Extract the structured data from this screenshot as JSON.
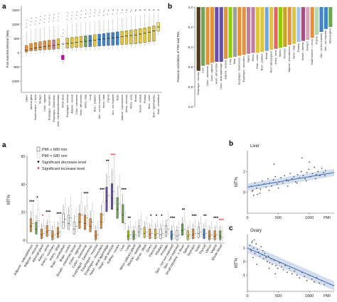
{
  "panel_labels": {
    "top_left": "a",
    "top_right": "b",
    "bottom_left": "a",
    "liver": "b",
    "ovary": "c"
  },
  "colors": {
    "box_default": "#e2c43a",
    "green": "#6aa84f",
    "orange": "#e69138",
    "purple": "#674ea7",
    "dark": "#333333",
    "fit_blue": "#3d6fb6",
    "ci_band": "#c9d6ea",
    "sig_black": "#000000",
    "sig_red": "#e03030"
  },
  "chart_data": [
    {
      "id": "pmi-distribution",
      "type": "box",
      "ylabel": "Post-mortem interval (Min)",
      "ylim": [
        -1400,
        1650
      ],
      "yticks": [
        -1000,
        -500,
        0,
        500,
        1000,
        1500
      ],
      "categories": [
        "Spleen",
        "Adrenal gland",
        "Small intestine - t. ileum",
        "Stomach",
        "Colon - sigmoid",
        "Esophagus - muscularis",
        "Esophagus - Gastroesop.",
        "Cells - transformed fibroblasts",
        "Whole blood",
        "Esophagus - mucosa",
        "Adipose - visceral",
        "Colon - transverse",
        "Heart - left ventricle",
        "Artery - tibial",
        "Lung",
        "Brain - putamen",
        "Skin - not sun exposed",
        "Nerve - tibial",
        "Thyroid",
        "Skin - sun exposed",
        "Testis",
        "Adipose - subcutaneous",
        "Artery - coronary",
        "Artery - aorta",
        "Breast",
        "Muscle - skeletal",
        "Pituitary",
        "Brain - cortex",
        "Brain - hypothalamus",
        "Brain - cerebellum"
      ],
      "medians": [
        80,
        130,
        160,
        190,
        210,
        230,
        250,
        280,
        300,
        320,
        340,
        360,
        380,
        400,
        420,
        440,
        460,
        480,
        500,
        520,
        540,
        560,
        580,
        600,
        620,
        650,
        680,
        720,
        760,
        900
      ],
      "q1": [
        20,
        60,
        70,
        90,
        100,
        110,
        120,
        140,
        -250,
        160,
        170,
        180,
        190,
        200,
        210,
        220,
        230,
        240,
        250,
        260,
        270,
        280,
        290,
        300,
        310,
        330,
        350,
        380,
        400,
        750
      ],
      "q3": [
        250,
        320,
        350,
        380,
        410,
        430,
        450,
        480,
        -90,
        510,
        530,
        550,
        570,
        590,
        610,
        630,
        650,
        670,
        690,
        710,
        730,
        750,
        770,
        790,
        810,
        840,
        870,
        900,
        940,
        1060
      ],
      "fill": [
        "#e69138",
        "#e69138",
        "#e69138",
        "#e69138",
        "#e69138",
        "#e69138",
        "#c27ba0",
        "#e2c43a",
        "#cc00cc",
        "#e2c43a",
        "#e2c43a",
        "#e2c43a",
        "#e2c43a",
        "#6aa84f",
        "#3d85c6",
        "#e2c43a",
        "#3d85c6",
        "#3d85c6",
        "#3d85c6",
        "#3d85c6",
        "#3d85c6",
        "#e2c43a",
        "#e2c43a",
        "#e2c43a",
        "#e2c43a",
        "#e2c43a",
        "#e2c43a",
        "#e2c43a",
        "#e2c43a",
        "#f1e15a"
      ]
    },
    {
      "id": "pmi-correlation",
      "type": "bar",
      "ylabel": "Pearson correlation of PMI and RIN",
      "ylim": [
        -1.0,
        0.0
      ],
      "yticks": [
        -1.0,
        -0.8,
        -0.6,
        -0.4,
        -0.2,
        0.0
      ],
      "categories": [
        "Esophagus - mucosa",
        "Liver",
        "Colon - transverse",
        "Colon - sigmoid",
        "Heart - left ventricle",
        "Heart - atrial appendage",
        "Adipose - visceral",
        "Lung",
        "Testis",
        "Esophagus - Gastroesop.",
        "Esophagus - muscularis",
        "Vagina",
        "Uterus",
        "Brain - cortex",
        "Brain - putamen",
        "Breast",
        "Minor salivary gland",
        "Artery - aorta",
        "Spleen",
        "Pancreas",
        "Adipose - subcutaneous",
        "Nerve - tibial",
        "Pituitary",
        "Muscle - skeletal",
        "Stomach",
        "Small intestine - t. ileum",
        "Thyroid",
        "Skin - not sun exposed",
        "Skin - sun exposed",
        "Adrenal gland"
      ],
      "values": [
        -0.64,
        -0.59,
        -0.58,
        -0.56,
        -0.55,
        -0.55,
        -0.52,
        -0.51,
        -0.5,
        -0.49,
        -0.48,
        -0.47,
        -0.46,
        -0.46,
        -0.45,
        -0.44,
        -0.43,
        -0.42,
        -0.41,
        -0.4,
        -0.38,
        -0.37,
        -0.35,
        -0.34,
        -0.33,
        -0.31,
        -0.28,
        -0.25,
        -0.22,
        -0.2
      ],
      "colors": [
        "#4a3a1a",
        "#6aa84f",
        "#e69138",
        "#e69138",
        "#674ea7",
        "#674ea7",
        "#e69138",
        "#8fce00",
        "#9e9e9e",
        "#e69138",
        "#e69138",
        "#c27ba0",
        "#c27ba0",
        "#e2c43a",
        "#e2c43a",
        "#6fa8dc",
        "#e2c43a",
        "#e06666",
        "#8fce00",
        "#c9a227",
        "#e69138",
        "#e2c43a",
        "#9fc5e8",
        "#a64d79",
        "#d5a6bd",
        "#e69138",
        "#b6d7a8",
        "#3d85c6",
        "#3d85c6",
        "#6aa84f"
      ]
    },
    {
      "id": "mt-percentage",
      "type": "box",
      "ylabel": "MT%",
      "ylim": [
        -2,
        60
      ],
      "yticks": [
        0,
        20,
        40,
        60
      ],
      "legend": [
        "PMI ≥ 680 min",
        "PMI < 680 min",
        "Significant decrease level",
        "Significant increase level"
      ],
      "categories": [
        "Adipose - subcutaneous",
        "Adipose - visceral",
        "Adrenal gland",
        "Artery - aorta",
        "Artery - coronary",
        "Artery - tibial",
        "Brain - cerebellum",
        "Brain - cortex",
        "Breast - mammary tissue",
        "Colon - sigmoid",
        "Colon - transverse",
        "Esophagus - Gastroesop.",
        "Esophagus - mucosa",
        "Esophagus - muscularis",
        "Heart - atrial appendage",
        "Heart - left ventricle",
        "Kidney - cortex",
        "Liver",
        "Lung",
        "Minor salivary gland",
        "Muscle - skeletal",
        "Nerve - tibial",
        "Ovary",
        "Pancreas",
        "Pituitary",
        "Prostate",
        "Skin - not sun exposed",
        "Skin - sun exposed",
        "Small intestine - t. ileum",
        "Spleen",
        "Stomach",
        "Testis",
        "Thyroid",
        "Uterus",
        "Vagina",
        "Whole blood"
      ],
      "long_median": [
        10,
        8,
        4,
        6,
        3,
        5,
        13,
        12,
        8,
        13,
        12,
        10,
        3,
        13,
        28,
        30,
        22,
        18,
        3,
        3,
        6,
        5,
        4,
        4,
        4,
        6,
        3,
        3,
        7,
        3,
        4,
        5,
        4,
        3,
        3,
        3
      ],
      "short_median": [
        12,
        14,
        5,
        7,
        4,
        6,
        15,
        16,
        10,
        18,
        16,
        13,
        4,
        18,
        32,
        35,
        26,
        12,
        4,
        4,
        8,
        6,
        5,
        5,
        5,
        8,
        4,
        4,
        8,
        4,
        5,
        6,
        5,
        4,
        4,
        2
      ],
      "long_fill": [
        "#e69138",
        "#6aa84f",
        "#e69138",
        "#e69138",
        "#e69138",
        "#e69138",
        "#ffffff",
        "#ffffff",
        "#ffffff",
        "#e69138",
        "#e69138",
        "#e69138",
        "#e69138",
        "#e69138",
        "#674ea7",
        "#674ea7",
        "#6aa84f",
        "#6aa84f",
        "#8fce00",
        "#6aa84f",
        "#ffffff",
        "#e2c43a",
        "#e69138",
        "#e2c43a",
        "#ffffff",
        "#ffffff",
        "#3d85c6",
        "#ffffff",
        "#6aa84f",
        "#e2c43a",
        "#e69138",
        "#ffffff",
        "#3d85c6",
        "#e69138",
        "#e69138",
        "#6aa84f"
      ],
      "significance": [
        "***",
        "*",
        "*",
        "***",
        "",
        "***",
        "",
        "",
        "",
        "",
        "***",
        "",
        "",
        "***",
        "**",
        "***",
        "",
        "***",
        "**",
        "",
        "",
        "",
        "*",
        "*",
        "*",
        "",
        "***",
        "",
        "**",
        "",
        "***",
        "",
        "**",
        "",
        "***",
        "***"
      ],
      "sig_type": [
        "decrease",
        "decrease",
        "increase",
        "decrease",
        "",
        "decrease",
        "",
        "",
        "",
        "",
        "decrease",
        "",
        "",
        "decrease",
        "decrease",
        "increase",
        "",
        "decrease",
        "decrease",
        "",
        "",
        "",
        "decrease",
        "decrease",
        "decrease",
        "",
        "decrease",
        "",
        "decrease",
        "",
        "decrease",
        "",
        "decrease",
        "",
        "decrease",
        "increase"
      ]
    },
    {
      "id": "liver-scatter",
      "type": "scatter",
      "title": "Liver",
      "xlabel": "PMI",
      "ylabel": "MT%",
      "xlim": [
        0,
        1400
      ],
      "ylim": [
        -2,
        4
      ],
      "xticks": [
        0,
        500,
        1000
      ],
      "yticks": [
        0,
        2
      ],
      "fit": {
        "x": [
          0,
          1400
        ],
        "y": [
          0.5,
          1.9
        ]
      },
      "x": [
        60,
        90,
        120,
        150,
        180,
        210,
        240,
        270,
        300,
        330,
        360,
        390,
        420,
        450,
        480,
        510,
        540,
        570,
        600,
        630,
        660,
        690,
        720,
        750,
        780,
        810,
        840,
        870,
        900,
        930,
        960,
        990,
        1020,
        1050,
        1080,
        1110,
        1140,
        1170,
        1200,
        1230,
        1260,
        100,
        200,
        350,
        500,
        650,
        800,
        950,
        1100,
        1250,
        75,
        430,
        880,
        160,
        1000
      ],
      "y": [
        0.6,
        0.2,
        0.9,
        0.4,
        0.7,
        0.3,
        1.1,
        0.8,
        0.5,
        1.3,
        0.9,
        0.6,
        1.2,
        1.5,
        0.8,
        1.0,
        1.4,
        0.9,
        1.6,
        1.2,
        1.1,
        1.8,
        1.3,
        1.5,
        1.0,
        1.7,
        1.4,
        2.0,
        1.6,
        1.3,
        1.9,
        2.2,
        1.5,
        1.8,
        2.4,
        1.7,
        2.0,
        1.6,
        2.3,
        1.9,
        2.1,
        -0.3,
        -0.1,
        0.2,
        0.4,
        0.6,
        0.9,
        1.1,
        1.3,
        1.6,
        0.1,
        2.7,
        3.3,
        -0.2,
        2.9
      ]
    },
    {
      "id": "ovary-scatter",
      "type": "scatter",
      "title": "Ovary",
      "xlabel": "PMI",
      "ylabel": "MT%",
      "xlim": [
        0,
        1400
      ],
      "ylim": [
        -2.2,
        2
      ],
      "xticks": [
        0,
        500,
        1000
      ],
      "yticks": [
        -1,
        0,
        1
      ],
      "fit": {
        "x": [
          0,
          1400
        ],
        "y": [
          1.0,
          -1.8
        ]
      },
      "x": [
        40,
        60,
        80,
        100,
        120,
        140,
        160,
        180,
        200,
        220,
        240,
        260,
        280,
        300,
        320,
        340,
        360,
        380,
        400,
        430,
        460,
        490,
        520,
        550,
        580,
        610,
        640,
        680,
        720,
        760,
        800,
        840,
        880,
        920,
        960,
        1000,
        1040,
        1080,
        1120,
        1160,
        1200,
        1240,
        50,
        70,
        90,
        110,
        150,
        250,
        350,
        450
      ],
      "y": [
        1.2,
        0.8,
        1.5,
        1.0,
        0.6,
        1.3,
        0.9,
        0.7,
        0.4,
        1.1,
        0.5,
        0.2,
        0.6,
        0.3,
        0.0,
        0.4,
        -0.1,
        0.2,
        -0.2,
        0.1,
        -0.3,
        -0.5,
        -0.1,
        -0.4,
        -0.6,
        -0.3,
        -0.8,
        -0.5,
        -0.9,
        -0.7,
        -1.0,
        -1.2,
        -0.8,
        -1.1,
        -1.4,
        -1.0,
        -1.3,
        -1.5,
        -1.2,
        -1.6,
        -1.4,
        -1.7,
        0.9,
        1.4,
        0.3,
        1.6,
        -0.2,
        0.8,
        -0.5,
        -0.9
      ]
    }
  ]
}
